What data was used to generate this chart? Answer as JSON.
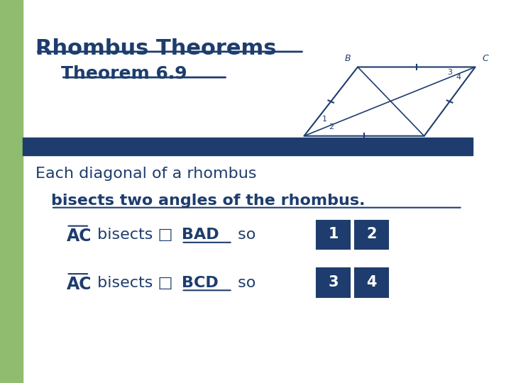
{
  "bg_color": "#ffffff",
  "left_bar_color": "#8fbc6e",
  "divider_color": "#1e3d6e",
  "title_color": "#1e3d6e",
  "text_color": "#1e3d6e",
  "title_main": "Rhombus Theorems",
  "title_sub": "Theorem 6.9",
  "line1": "Each diagonal of a rhombus",
  "line2": "bisects two angles of the rhombus.",
  "fig_width": 7.2,
  "fig_height": 5.4
}
